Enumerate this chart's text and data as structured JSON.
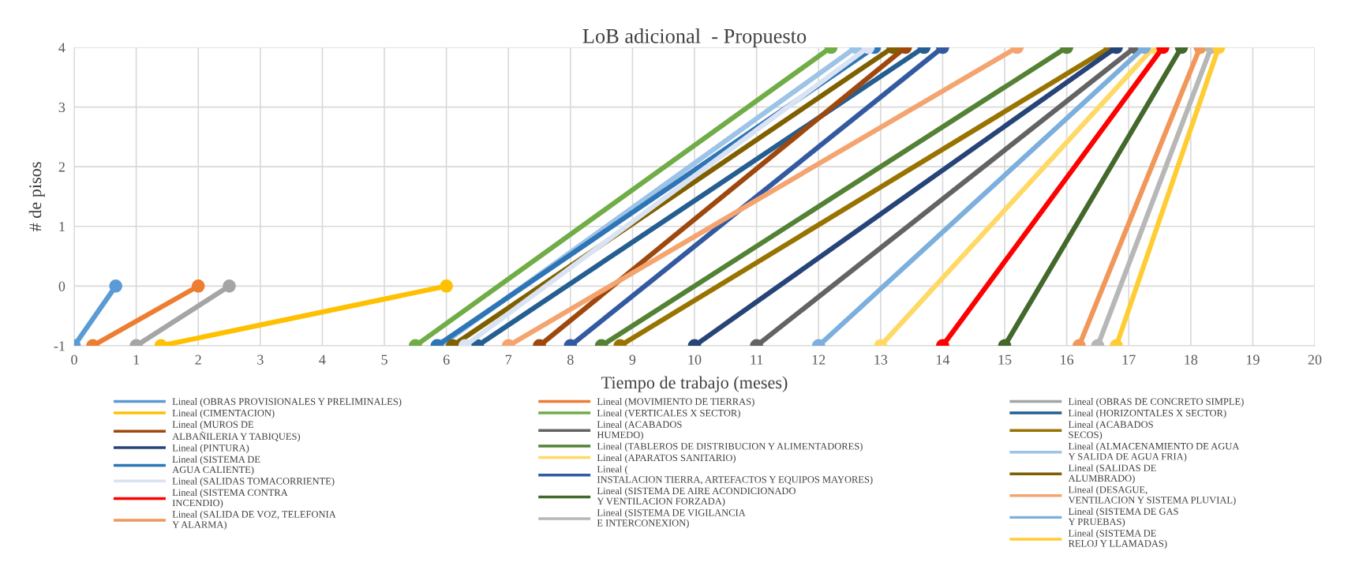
{
  "chart_data": {
    "type": "line",
    "title": "LoB adicional  - Propuesto",
    "xlabel": "Tiempo de trabajo (meses)",
    "ylabel": "# de pisos",
    "xlim": [
      0,
      20
    ],
    "xticks": [
      0,
      1,
      2,
      3,
      4,
      5,
      6,
      7,
      8,
      9,
      10,
      11,
      12,
      13,
      14,
      15,
      16,
      17,
      18,
      19,
      20
    ],
    "ylim": [
      -1,
      4
    ],
    "yticks": [
      -1,
      0,
      1,
      2,
      3,
      4
    ],
    "grid": true,
    "legend": "bottom",
    "marker": "circle",
    "line_style": "solid",
    "series": [
      {
        "name": "Lineal (OBRAS PROVISIONALES Y PRELIMINALES)",
        "color": "#5b9bd5",
        "x": [
          0,
          0.67
        ],
        "values": [
          -1,
          0
        ]
      },
      {
        "name": "Lineal (MOVIMIENTO DE TIERRAS)",
        "color": "#ed7d31",
        "x": [
          0.3,
          2
        ],
        "values": [
          -1,
          0
        ]
      },
      {
        "name": "Lineal (OBRAS DE CONCRETO SIMPLE)",
        "color": "#a5a5a5",
        "x": [
          1,
          2.5
        ],
        "values": [
          -1,
          0
        ]
      },
      {
        "name": "Lineal (CIMENTACION)",
        "color": "#ffc000",
        "x": [
          1.4,
          6
        ],
        "values": [
          -1,
          0
        ]
      },
      {
        "name": "Lineal (VERTICALES X SECTOR)",
        "color": "#70ad47",
        "x": [
          5.5,
          12.2
        ],
        "values": [
          -1,
          4
        ]
      },
      {
        "name": "Lineal (HORIZONTALES X SECTOR)",
        "color": "#255e91",
        "x": [
          6.5,
          13.7
        ],
        "values": [
          -1,
          4
        ]
      },
      {
        "name": "Lineal (MUROS DE\nALBAÑILERIA Y TABIQUES)",
        "color": "#9e480e",
        "x": [
          7.5,
          13.4
        ],
        "values": [
          -1,
          4
        ]
      },
      {
        "name": "Lineal (ACABADOS\nHUMEDO)",
        "color": "#636363",
        "x": [
          11,
          17.1
        ],
        "values": [
          -1,
          4
        ]
      },
      {
        "name": "Lineal (ACABADOS\nSECOS)",
        "color": "#997300",
        "x": [
          8.8,
          16.7
        ],
        "values": [
          -1,
          4
        ]
      },
      {
        "name": "Lineal (PINTURA)",
        "color": "#264478",
        "x": [
          10,
          16.8
        ],
        "values": [
          -1,
          4
        ]
      },
      {
        "name": "Lineal (TABLEROS DE DISTRIBUCION Y ALIMENTADORES)",
        "color": "#548235",
        "x": [
          8.5,
          16
        ],
        "values": [
          -1,
          4
        ]
      },
      {
        "name": "Lineal (ALMACENAMIENTO DE AGUA\nY SALIDA DE AGUA FRIA)",
        "color": "#9dc3e6",
        "x": [
          5.9,
          12.6
        ],
        "values": [
          -1,
          4
        ]
      },
      {
        "name": "Lineal (SISTEMA DE\nAGUA CALIENTE)",
        "color": "#2e75b6",
        "x": [
          5.85,
          12.9
        ],
        "values": [
          -1,
          4
        ]
      },
      {
        "name": "Lineal (APARATOS SANITARIO)",
        "color": "#ffd966",
        "x": [
          13,
          17.4
        ],
        "values": [
          -1,
          4
        ]
      },
      {
        "name": "Lineal (SALIDAS DE\nALUMBRADO)",
        "color": "#7f6000",
        "x": [
          6.1,
          13.2
        ],
        "values": [
          -1,
          4
        ]
      },
      {
        "name": "Lineal (SALIDAS TOMACORRIENTE)",
        "color": "#dae3f3",
        "x": [
          6.3,
          12.8
        ],
        "values": [
          -1,
          4
        ]
      },
      {
        "name": "Lineal (\nINSTALACION TIERRA, ARTEFACTOS Y EQUIPOS MAYORES)",
        "color": "#335aa1",
        "x": [
          8,
          14
        ],
        "values": [
          -1,
          4
        ]
      },
      {
        "name": "Lineal (DESAGUE,\nVENTILACION Y SISTEMA PLUVIAL)",
        "color": "#f4a46f",
        "x": [
          7,
          15.2
        ],
        "values": [
          -1,
          4
        ]
      },
      {
        "name": "Lineal (SISTEMA CONTRA\nINCENDIO)",
        "color": "#ff0000",
        "x": [
          14,
          17.55
        ],
        "values": [
          -1,
          4
        ]
      },
      {
        "name": "Lineal (SISTEMA DE AIRE ACONDICIONADO\nY VENTILACION FORZADA)",
        "color": "#43682b",
        "x": [
          15,
          17.85
        ],
        "values": [
          -1,
          4
        ]
      },
      {
        "name": "Lineal (SISTEMA DE GAS\nY PRUEBAS)",
        "color": "#7cafdd",
        "x": [
          12,
          17.25
        ],
        "values": [
          -1,
          4
        ]
      },
      {
        "name": "Lineal (SALIDA DE VOZ, TELEFONIA\nY ALARMA)",
        "color": "#f1975a",
        "x": [
          16.2,
          18.15
        ],
        "values": [
          -1,
          4
        ]
      },
      {
        "name": "Lineal (SISTEMA DE VIGILANCIA\nE INTERCONEXION)",
        "color": "#b7b7b7",
        "x": [
          16.5,
          18.33
        ],
        "values": [
          -1,
          4
        ]
      },
      {
        "name": "Lineal (SISTEMA DE\nRELOJ Y LLAMADAS)",
        "color": "#ffcd33",
        "x": [
          16.8,
          18.45
        ],
        "values": [
          -1,
          4
        ]
      }
    ]
  }
}
